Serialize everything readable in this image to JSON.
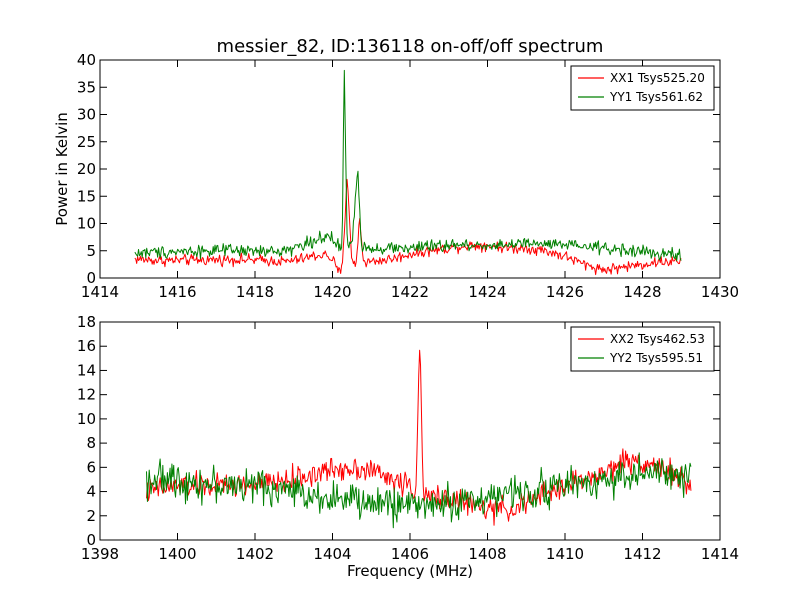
{
  "chart_data": [
    {
      "type": "line",
      "title": "messier_82, ID:136118 on-off/off spectrum",
      "xlabel": "",
      "ylabel": "Power in Kelvin",
      "xlim": [
        1414,
        1430
      ],
      "ylim": [
        0,
        40
      ],
      "xticks": [
        1414,
        1416,
        1418,
        1420,
        1422,
        1424,
        1426,
        1428,
        1430
      ],
      "yticks": [
        0,
        5,
        10,
        15,
        20,
        25,
        30,
        35,
        40
      ],
      "grid": false,
      "legend_position": "top-right",
      "series": [
        {
          "name": "XX1 Tsys525.20",
          "color": "#ff0000",
          "anchors": [
            [
              1414.9,
              3.5
            ],
            [
              1415.5,
              3.2
            ],
            [
              1416.5,
              3.3
            ],
            [
              1417.5,
              3.4
            ],
            [
              1418.3,
              3.2
            ],
            [
              1418.8,
              3.0
            ],
            [
              1419.2,
              3.5
            ],
            [
              1419.5,
              4.0
            ],
            [
              1419.8,
              4.3
            ],
            [
              1420.0,
              3.5
            ],
            [
              1420.15,
              1.0
            ],
            [
              1420.25,
              1.5
            ],
            [
              1420.38,
              19.0
            ],
            [
              1420.5,
              3.0
            ],
            [
              1420.6,
              2.0
            ],
            [
              1420.7,
              11.0
            ],
            [
              1420.8,
              3.0
            ],
            [
              1421.0,
              3.0
            ],
            [
              1421.3,
              3.3
            ],
            [
              1421.6,
              3.6
            ],
            [
              1422.0,
              4.4
            ],
            [
              1422.5,
              5.0
            ],
            [
              1423.0,
              5.5
            ],
            [
              1423.5,
              6.0
            ],
            [
              1424.0,
              6.0
            ],
            [
              1424.5,
              5.5
            ],
            [
              1425.0,
              5.5
            ],
            [
              1425.5,
              5.0
            ],
            [
              1426.0,
              4.0
            ],
            [
              1426.5,
              2.5
            ],
            [
              1427.0,
              1.5
            ],
            [
              1427.5,
              2.0
            ],
            [
              1428.0,
              2.5
            ],
            [
              1428.5,
              3.0
            ],
            [
              1429.0,
              3.0
            ]
          ],
          "noise": 0.7
        },
        {
          "name": "YY1 Tsys561.62",
          "color": "#008000",
          "anchors": [
            [
              1414.9,
              4.5
            ],
            [
              1415.5,
              4.8
            ],
            [
              1416.5,
              5.0
            ],
            [
              1417.5,
              5.0
            ],
            [
              1418.5,
              4.8
            ],
            [
              1419.0,
              5.5
            ],
            [
              1419.4,
              6.5
            ],
            [
              1419.7,
              7.5
            ],
            [
              1420.0,
              7.0
            ],
            [
              1420.15,
              6.0
            ],
            [
              1420.25,
              5.0
            ],
            [
              1420.3,
              40.0
            ],
            [
              1420.38,
              6.0
            ],
            [
              1420.5,
              6.0
            ],
            [
              1420.65,
              20.0
            ],
            [
              1420.75,
              6.0
            ],
            [
              1421.0,
              5.5
            ],
            [
              1421.5,
              5.5
            ],
            [
              1422.0,
              5.5
            ],
            [
              1423.0,
              6.0
            ],
            [
              1424.0,
              6.0
            ],
            [
              1425.0,
              6.3
            ],
            [
              1426.0,
              6.0
            ],
            [
              1427.0,
              5.5
            ],
            [
              1428.0,
              4.8
            ],
            [
              1429.0,
              4.0
            ]
          ],
          "noise": 0.8
        }
      ]
    },
    {
      "type": "line",
      "title": "",
      "xlabel": "Frequency (MHz)",
      "ylabel": "",
      "xlim": [
        1398,
        1414
      ],
      "ylim": [
        0,
        18
      ],
      "xticks": [
        1398,
        1400,
        1402,
        1404,
        1406,
        1408,
        1410,
        1412,
        1414
      ],
      "yticks": [
        0,
        2,
        4,
        6,
        8,
        10,
        12,
        14,
        16,
        18
      ],
      "grid": false,
      "legend_position": "top-right",
      "series": [
        {
          "name": "XX2 Tsys462.53",
          "color": "#ff0000",
          "anchors": [
            [
              1399.2,
              4.0
            ],
            [
              1400.0,
              4.5
            ],
            [
              1401.0,
              4.5
            ],
            [
              1402.0,
              4.5
            ],
            [
              1403.0,
              5.0
            ],
            [
              1404.0,
              5.8
            ],
            [
              1404.5,
              6.0
            ],
            [
              1405.0,
              5.8
            ],
            [
              1405.5,
              5.0
            ],
            [
              1406.0,
              4.5
            ],
            [
              1406.15,
              4.0
            ],
            [
              1406.25,
              16.0
            ],
            [
              1406.35,
              3.5
            ],
            [
              1406.6,
              3.5
            ],
            [
              1407.0,
              3.5
            ],
            [
              1407.5,
              3.0
            ],
            [
              1408.0,
              2.5
            ],
            [
              1408.5,
              2.5
            ],
            [
              1409.0,
              3.0
            ],
            [
              1409.5,
              3.8
            ],
            [
              1410.0,
              4.5
            ],
            [
              1410.5,
              5.0
            ],
            [
              1411.0,
              5.5
            ],
            [
              1411.5,
              6.5
            ],
            [
              1412.0,
              6.5
            ],
            [
              1412.5,
              6.0
            ],
            [
              1413.0,
              5.0
            ],
            [
              1413.25,
              4.0
            ]
          ],
          "noise": 0.7
        },
        {
          "name": "YY2 Tsys595.51",
          "color": "#008000",
          "anchors": [
            [
              1399.2,
              5.0
            ],
            [
              1400.0,
              5.0
            ],
            [
              1401.0,
              4.5
            ],
            [
              1402.0,
              4.5
            ],
            [
              1403.0,
              4.0
            ],
            [
              1404.0,
              3.5
            ],
            [
              1405.0,
              3.0
            ],
            [
              1406.0,
              3.0
            ],
            [
              1407.0,
              3.0
            ],
            [
              1408.0,
              3.5
            ],
            [
              1409.0,
              4.0
            ],
            [
              1410.0,
              4.5
            ],
            [
              1411.0,
              5.0
            ],
            [
              1412.0,
              5.5
            ],
            [
              1412.5,
              5.5
            ],
            [
              1413.0,
              5.0
            ],
            [
              1413.25,
              5.0
            ]
          ],
          "noise": 1.0
        }
      ]
    }
  ]
}
